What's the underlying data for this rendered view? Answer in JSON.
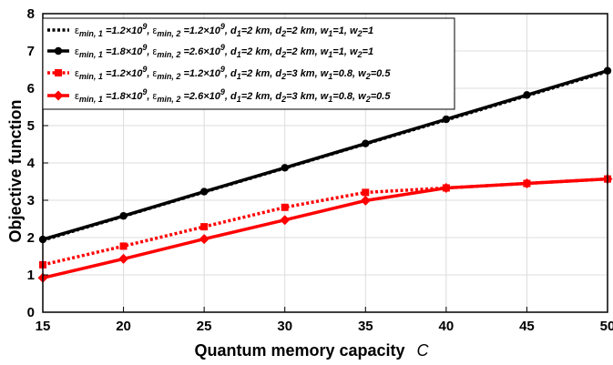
{
  "chart_data": {
    "type": "line",
    "title": "",
    "xlabel": "Quantum memory capacity",
    "xlabel_symbol": "C",
    "ylabel": "Objective function",
    "xlim": [
      15,
      50
    ],
    "ylim": [
      0,
      8
    ],
    "xticks": [
      "15",
      "20",
      "25",
      "30",
      "35",
      "40",
      "45",
      "50"
    ],
    "yticks": [
      "0",
      "1",
      "2",
      "3",
      "4",
      "5",
      "6",
      "7",
      "8"
    ],
    "grid": true,
    "legend_position": "top-left",
    "x": [
      15,
      20,
      25,
      30,
      35,
      40,
      45,
      50
    ],
    "series": [
      {
        "name": "ε_{min, 1} =1.2×10^9, ε_{min, 2} =1.2×10^9, d_1=2 km, d_2=2 km, w_1=1, w_2=1",
        "color": "#000000",
        "line_style": "dotted",
        "marker": "none",
        "values": [
          1.93,
          2.57,
          3.22,
          3.86,
          4.51,
          5.15,
          5.8,
          6.45
        ]
      },
      {
        "name": "ε_{min, 1} =1.8×10^9, ε_{min, 2} =2.6×10^9, d_1=2 km, d_2=2 km, w_1=1, w_2=1",
        "color": "#000000",
        "line_style": "solid",
        "marker": "circle",
        "values": [
          1.95,
          2.58,
          3.23,
          3.87,
          4.52,
          5.17,
          5.82,
          6.47
        ]
      },
      {
        "name": "ε_{min, 1} =1.2×10^9, ε_{min, 2} =1.2×10^9, d_1=2 km, d_2=3 km, w_1=0.8, w_2=0.5",
        "color": "#ff0000",
        "line_style": "dotted",
        "marker": "square",
        "values": [
          1.27,
          1.77,
          2.29,
          2.81,
          3.21,
          3.33,
          3.45,
          3.57
        ]
      },
      {
        "name": "ε_{min, 1} =1.8×10^9, ε_{min, 2} =2.6×10^9, d_1=2 km, d_2=3 km, w_1=0.8, w_2=0.5",
        "color": "#ff0000",
        "line_style": "solid",
        "marker": "diamond",
        "values": [
          0.92,
          1.43,
          1.96,
          2.47,
          2.99,
          3.33,
          3.45,
          3.57
        ]
      }
    ],
    "legend_entries": [
      {
        "eps1_sub": "min, 1",
        "eps1_val": "=1.2×10",
        "eps1_exp": "9",
        "eps2_sub": "min, 2",
        "eps2_val": "=1.2×10",
        "eps2_exp": "9",
        "d1": "=2 km,",
        "d2": "=2 km,",
        "w1": "=1,",
        "w2": "=1"
      },
      {
        "eps1_sub": "min, 1",
        "eps1_val": "=1.8×10",
        "eps1_exp": "9",
        "eps2_sub": "min, 2",
        "eps2_val": "=2.6×10",
        "eps2_exp": "9",
        "d1": "=2 km,",
        "d2": "=2 km,",
        "w1": "=1,",
        "w2": "=1"
      },
      {
        "eps1_sub": "min, 1",
        "eps1_val": "=1.2×10",
        "eps1_exp": "9",
        "eps2_sub": "min, 2",
        "eps2_val": "=1.2×10",
        "eps2_exp": "9",
        "d1": "=2 km,",
        "d2": "=3 km,",
        "w1": "=0.8,",
        "w2": "=0.5"
      },
      {
        "eps1_sub": "min, 1",
        "eps1_val": "=1.8×10",
        "eps1_exp": "9",
        "eps2_sub": "min, 2",
        "eps2_val": "=2.6×10",
        "eps2_exp": "9",
        "d1": "=2 km,",
        "d2": "=3 km,",
        "w1": "=0.8,",
        "w2": "=0.5"
      }
    ]
  }
}
